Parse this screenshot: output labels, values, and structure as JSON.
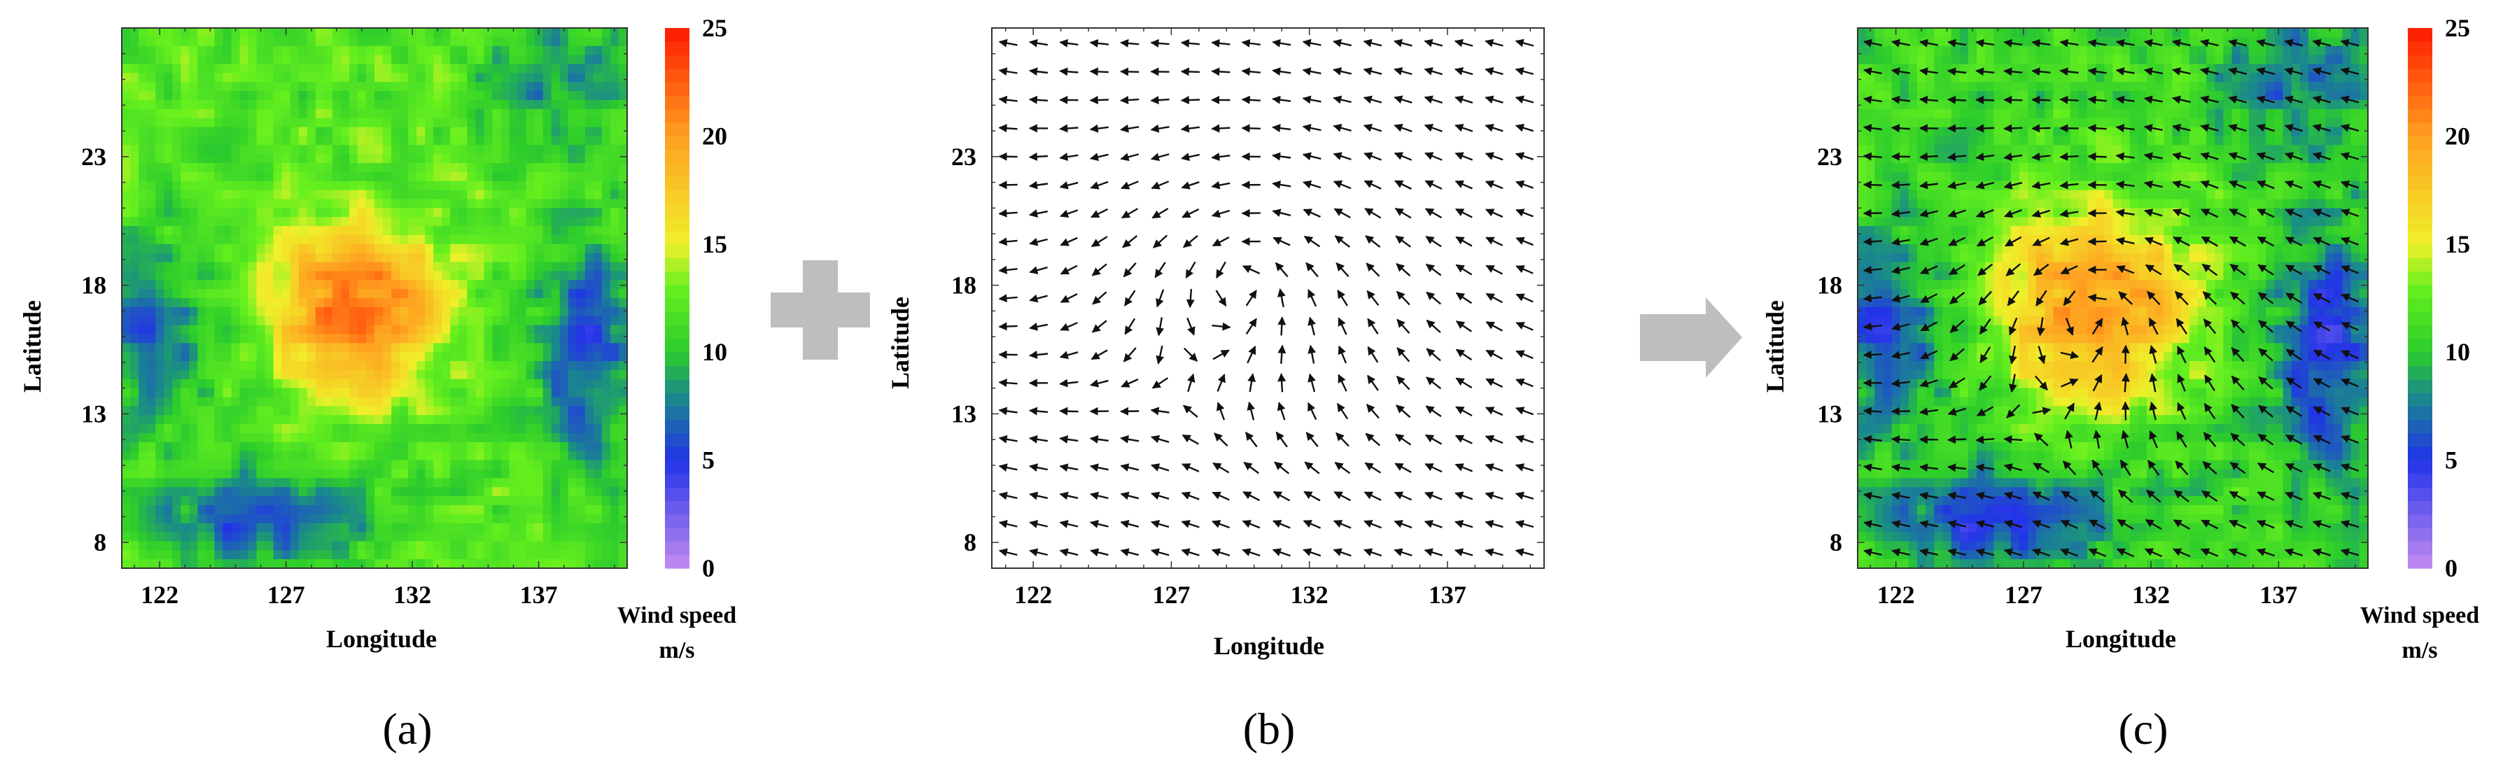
{
  "chart_data": [
    {
      "type": "heatmap",
      "panel_label": "(a)",
      "xlabel": "Longitude",
      "ylabel": "Latitude",
      "xticks": [
        122,
        127,
        132,
        137
      ],
      "yticks": [
        8,
        13,
        18,
        23
      ],
      "xlim": [
        120.5,
        140.5
      ],
      "ylim": [
        7,
        28
      ],
      "colorbar": {
        "label_line1": "Wind speed",
        "label_line2": "m/s",
        "ticks": [
          0,
          5,
          10,
          15,
          20,
          25
        ],
        "range": [
          0,
          25
        ]
      },
      "color_stops": [
        [
          "0",
          "#c48cf0"
        ],
        [
          "5",
          "#2233e8"
        ],
        [
          "8",
          "#1a8a8a"
        ],
        [
          "10",
          "#2ccc2c"
        ],
        [
          "13",
          "#66f01e"
        ],
        [
          "15",
          "#f0f02a"
        ],
        [
          "20",
          "#ffa020"
        ],
        [
          "25",
          "#ff1a00"
        ]
      ],
      "features": {
        "center": [
          129.8,
          17.1
        ],
        "peak_speed": 22,
        "core_radius_deg": 3.2,
        "ambient_speed": 12,
        "low_region_east": [
          139,
          15
        ],
        "low_region_west": [
          122,
          16
        ]
      }
    },
    {
      "type": "vector-field",
      "panel_label": "(b)",
      "xlabel": "Longitude",
      "ylabel": "Latitude",
      "xticks": [
        122,
        127,
        132,
        137
      ],
      "yticks": [
        8,
        13,
        18,
        23
      ],
      "xlim": [
        120.5,
        140.5
      ],
      "ylim": [
        7,
        28
      ],
      "features": {
        "vortex_center": [
          129.8,
          18.5
        ],
        "grid_spacing_deg": 1.1,
        "background_flow": "westward"
      }
    },
    {
      "type": "heatmap",
      "panel_label": "(c)",
      "xlabel": "Longitude",
      "ylabel": "Latitude",
      "xticks": [
        122,
        127,
        132,
        137
      ],
      "yticks": [
        8,
        13,
        18,
        23
      ],
      "xlim": [
        120.5,
        140.5
      ],
      "ylim": [
        7,
        28
      ],
      "colorbar": {
        "label_line1": "Wind speed",
        "label_line2": "m/s",
        "ticks": [
          0,
          5,
          10,
          15,
          20,
          25
        ],
        "range": [
          0,
          25
        ]
      },
      "overlay": "wind-vectors",
      "features": {
        "center": [
          129.8,
          17.2
        ],
        "peak_speed": 20
      }
    }
  ],
  "connectors": {
    "plus": "plus-symbol",
    "arrow": "right-arrow"
  },
  "colors": {
    "connector_gray": "#bebebe",
    "arrow_black": "#111111",
    "frame": "#333333"
  }
}
